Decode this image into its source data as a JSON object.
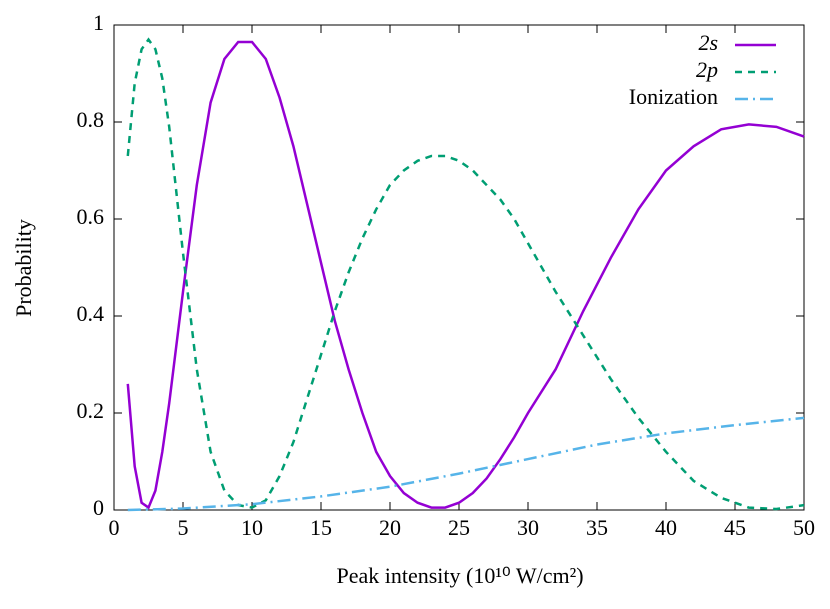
{
  "chart_data": {
    "type": "line",
    "xlabel": "Peak intensity (10¹⁰ W/cm²)",
    "ylabel": "Probability",
    "x": [
      1,
      1.5,
      2,
      2.5,
      3,
      3.5,
      4,
      5,
      6,
      7,
      8,
      9,
      10,
      11,
      12,
      13,
      14,
      15,
      16,
      17,
      18,
      19,
      20,
      21,
      22,
      23,
      24,
      25,
      26,
      27,
      28,
      29,
      30,
      32,
      34,
      36,
      38,
      40,
      42,
      44,
      46,
      48,
      50
    ],
    "series": [
      {
        "name": "2s",
        "color": "#9400d3",
        "style": "solid",
        "values": [
          0.26,
          0.09,
          0.015,
          0.005,
          0.04,
          0.12,
          0.22,
          0.45,
          0.67,
          0.84,
          0.93,
          0.965,
          0.965,
          0.93,
          0.85,
          0.75,
          0.63,
          0.51,
          0.39,
          0.29,
          0.2,
          0.12,
          0.07,
          0.035,
          0.015,
          0.005,
          0.005,
          0.015,
          0.035,
          0.065,
          0.105,
          0.15,
          0.2,
          0.29,
          0.41,
          0.52,
          0.62,
          0.7,
          0.75,
          0.785,
          0.795,
          0.79,
          0.77
        ]
      },
      {
        "name": "2p",
        "color": "#009e73",
        "style": "dashed",
        "values": [
          0.73,
          0.88,
          0.95,
          0.97,
          0.95,
          0.89,
          0.79,
          0.53,
          0.29,
          0.12,
          0.04,
          0.01,
          0.005,
          0.02,
          0.07,
          0.14,
          0.23,
          0.32,
          0.41,
          0.49,
          0.56,
          0.62,
          0.67,
          0.7,
          0.72,
          0.73,
          0.73,
          0.72,
          0.7,
          0.67,
          0.64,
          0.6,
          0.55,
          0.45,
          0.36,
          0.27,
          0.19,
          0.12,
          0.06,
          0.025,
          0.005,
          0.002,
          0.01
        ]
      },
      {
        "name": "Ionization",
        "color": "#56b4e9",
        "style": "dashdot",
        "x": [
          1,
          5,
          10,
          15,
          20,
          25,
          30,
          35,
          40,
          45,
          50
        ],
        "values": [
          0,
          0.003,
          0.012,
          0.028,
          0.048,
          0.075,
          0.105,
          0.135,
          0.158,
          0.175,
          0.19
        ]
      }
    ],
    "xlim": [
      0,
      50
    ],
    "xticks": [
      0,
      5,
      10,
      15,
      20,
      25,
      30,
      35,
      40,
      45,
      50
    ],
    "ylim": [
      0,
      1
    ],
    "yticks": [
      0,
      0.2,
      0.4,
      0.6,
      0.8,
      1
    ],
    "legend": "top-right"
  }
}
